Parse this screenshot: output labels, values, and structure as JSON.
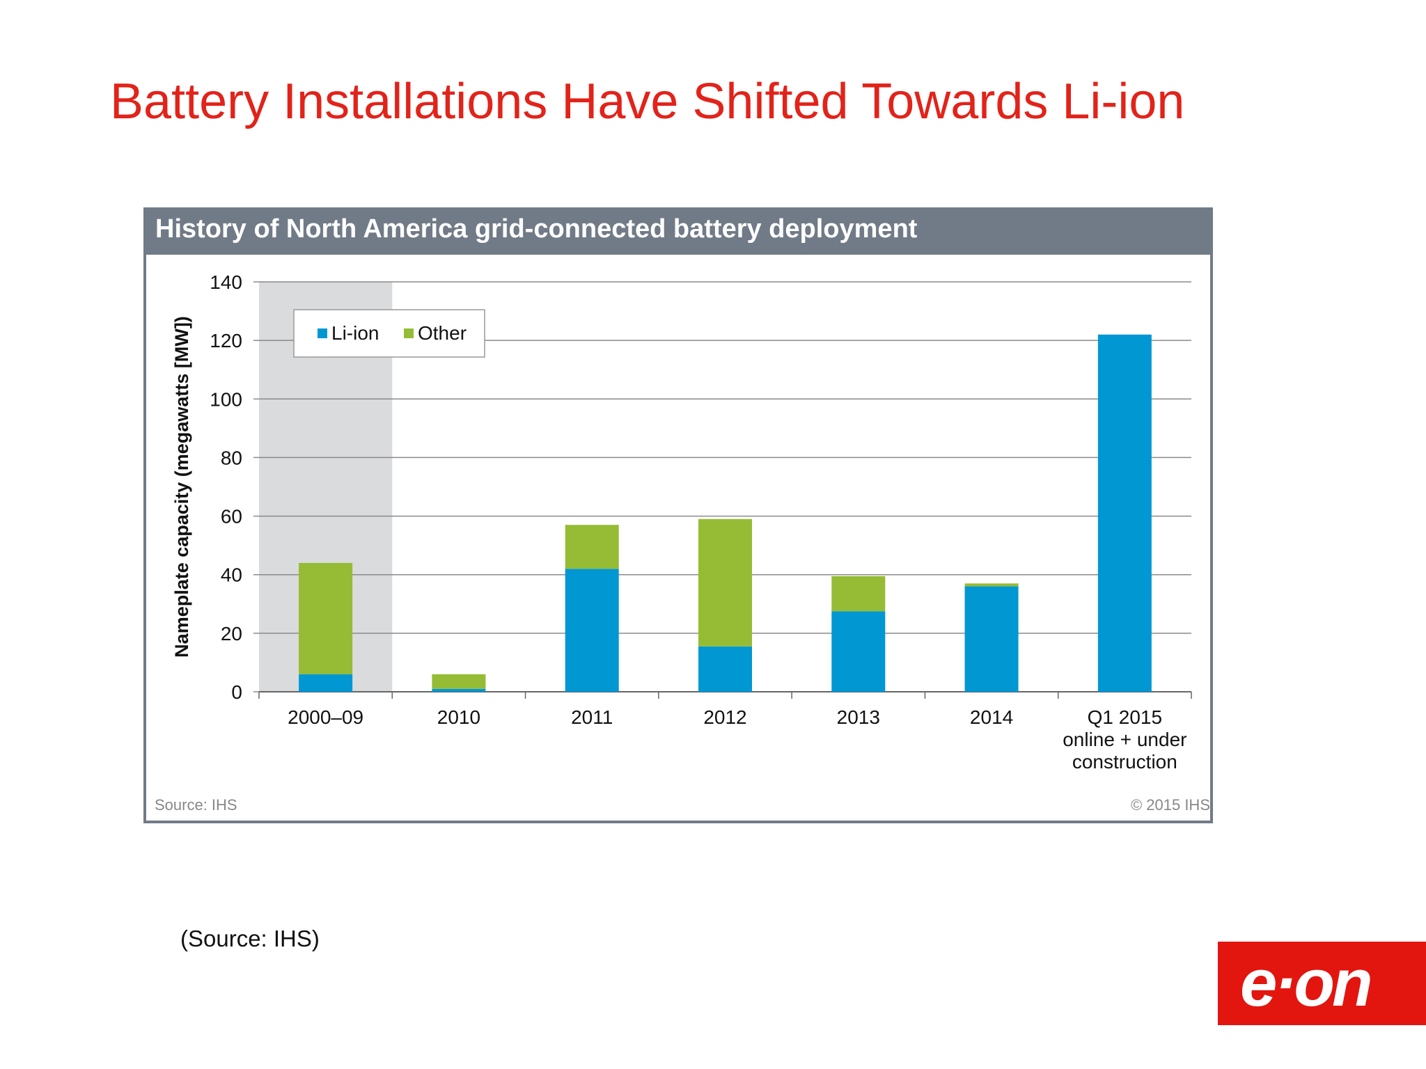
{
  "slide": {
    "title": "Battery Installations Have Shifted Towards Li-ion",
    "footnote": "(Source: IHS)",
    "logo_text": "e·on",
    "logo_color": "#e2160f"
  },
  "chart_data": {
    "type": "bar",
    "stacked": true,
    "title": "History of North America grid-connected battery deployment",
    "ylabel": "Nameplate capacity (megawatts [MW])",
    "xlabel": "",
    "ylim": [
      0,
      140
    ],
    "yticks": [
      0,
      20,
      40,
      60,
      80,
      100,
      120,
      140
    ],
    "grid": true,
    "legend_placement": "top-left",
    "highlighted_category": "2000–09",
    "categories": [
      "2000–09",
      "2010",
      "2011",
      "2012",
      "2013",
      "2014",
      "Q1 2015 online + under construction"
    ],
    "category_lines": [
      [
        "2000–09"
      ],
      [
        "2010"
      ],
      [
        "2011"
      ],
      [
        "2012"
      ],
      [
        "2013"
      ],
      [
        "2014"
      ],
      [
        "Q1 2015",
        "online + under",
        "construction"
      ]
    ],
    "series": [
      {
        "name": "Li-ion",
        "color": "#0097d3",
        "values": [
          6,
          1,
          42,
          15.5,
          27.5,
          36,
          122
        ]
      },
      {
        "name": "Other",
        "color": "#95bc34",
        "values": [
          38,
          5,
          15,
          43.5,
          12,
          1,
          0
        ]
      }
    ],
    "source": "Source: IHS",
    "copyright": "© 2015 IHS"
  }
}
